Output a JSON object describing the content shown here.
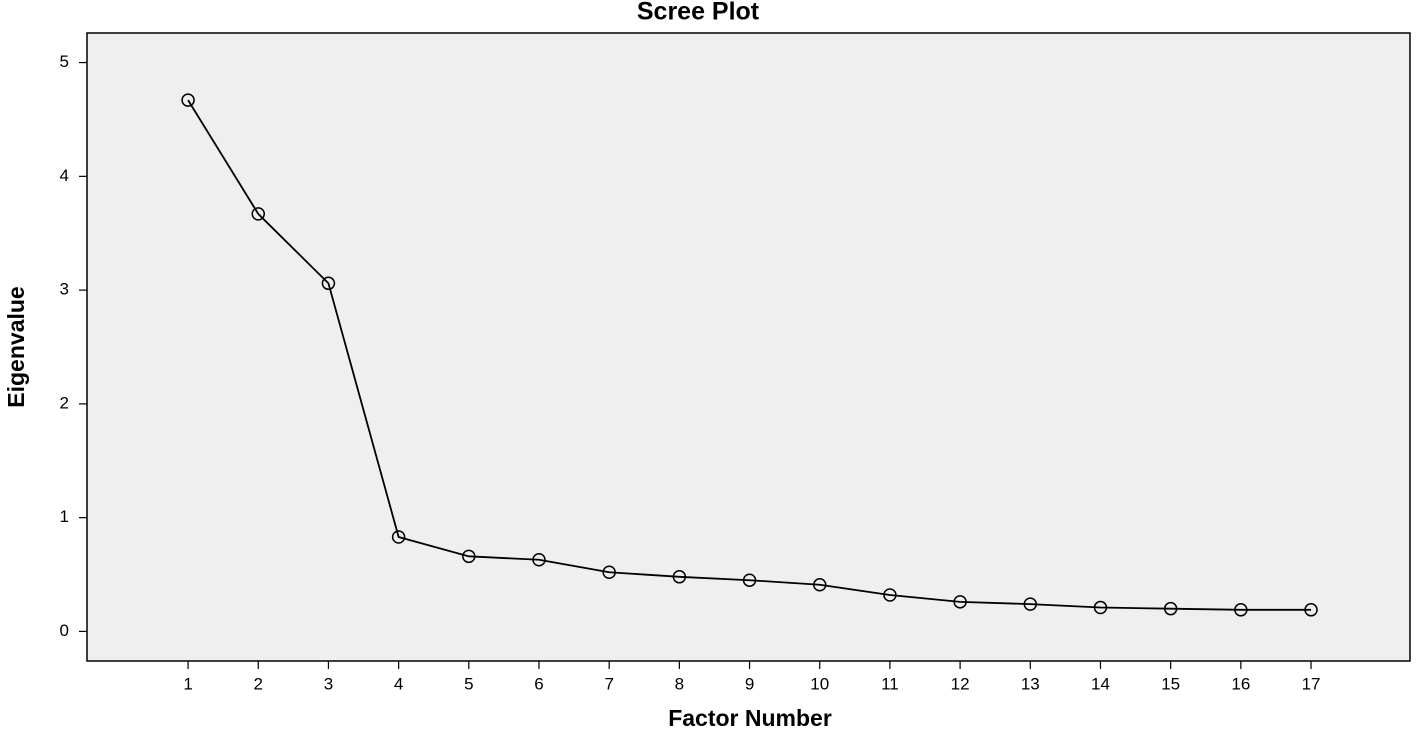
{
  "chart_data": {
    "type": "line",
    "title": "Scree Plot",
    "x_label": "Factor Number",
    "y_label": "Eigenvalue",
    "x": [
      1,
      2,
      3,
      4,
      5,
      6,
      7,
      8,
      9,
      10,
      11,
      12,
      13,
      14,
      15,
      16,
      17
    ],
    "series": [
      {
        "color": "#000000",
        "values": [
          4.67,
          3.67,
          3.06,
          0.83,
          0.66,
          0.63,
          0.52,
          0.48,
          0.45,
          0.41,
          0.32,
          0.26,
          0.24,
          0.21,
          0.2,
          0.19,
          0.19
        ]
      }
    ],
    "xlim": [
      -0.44,
      18.41
    ],
    "xticks": [
      1,
      2,
      3,
      4,
      5,
      6,
      7,
      8,
      9,
      10,
      11,
      12,
      13,
      14,
      15,
      16,
      17
    ],
    "ylim": [
      -0.26,
      5.26
    ],
    "yticks": [
      0,
      1,
      2,
      3,
      4,
      5
    ],
    "background": "#efefef",
    "grid": false
  }
}
